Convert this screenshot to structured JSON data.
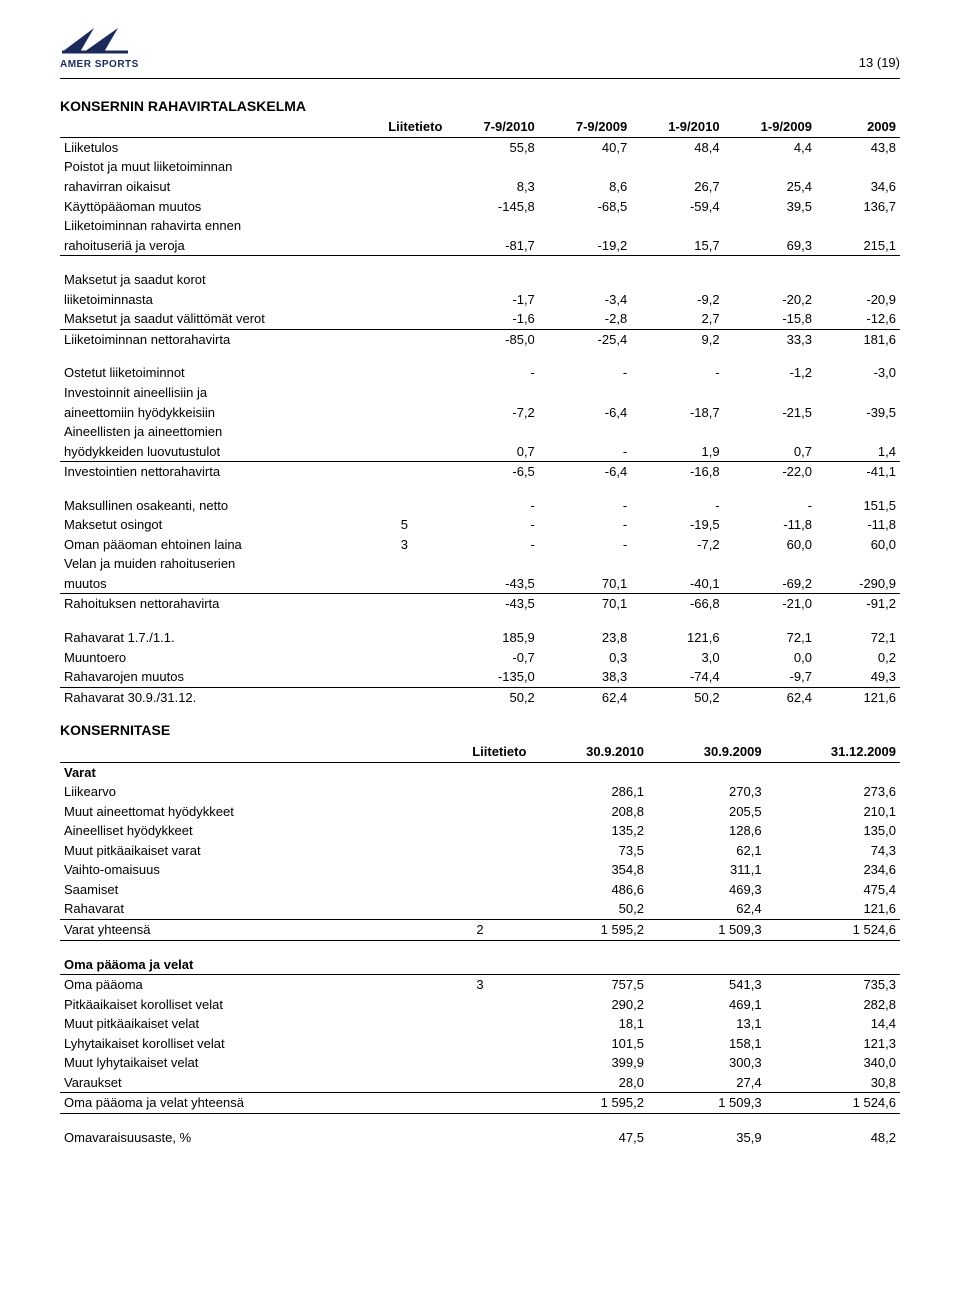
{
  "header": {
    "logo_name": "AMER SPORTS",
    "logo_color": "#1b2a5a",
    "page_number": "13 (19)"
  },
  "cashflow": {
    "title": "KONSERNIN RAHAVIRTALASKELMA",
    "col_widths_pct": [
      36,
      10,
      11,
      11,
      11,
      11,
      10
    ],
    "header_row": [
      "",
      "Liitetieto",
      "7-9/2010",
      "7-9/2009",
      "1-9/2010",
      "1-9/2009",
      "2009"
    ],
    "sections": [
      {
        "rows": [
          {
            "label": "Liiketulos",
            "note": "",
            "v": [
              "55,8",
              "40,7",
              "48,4",
              "4,4",
              "43,8"
            ]
          },
          {
            "label": "Poistot ja muut liiketoiminnan",
            "wrap": true
          },
          {
            "label": "rahavirran oikaisut",
            "note": "",
            "v": [
              "8,3",
              "8,6",
              "26,7",
              "25,4",
              "34,6"
            ]
          },
          {
            "label": "Käyttöpääoman muutos",
            "note": "",
            "v": [
              "-145,8",
              "-68,5",
              "-59,4",
              "39,5",
              "136,7"
            ]
          },
          {
            "label": "Liiketoiminnan rahavirta ennen",
            "wrap": true
          },
          {
            "label": "rahoituseriä ja veroja",
            "note": "",
            "v": [
              "-81,7",
              "-19,2",
              "15,7",
              "69,3",
              "215,1"
            ],
            "underline": true
          }
        ]
      },
      {
        "gap": true,
        "rows": [
          {
            "label": "Maksetut ja saadut korot",
            "wrap": true
          },
          {
            "label": "liiketoiminnasta",
            "note": "",
            "v": [
              "-1,7",
              "-3,4",
              "-9,2",
              "-20,2",
              "-20,9"
            ]
          },
          {
            "label": "Maksetut ja saadut välittömät verot",
            "note": "",
            "v": [
              "-1,6",
              "-2,8",
              "2,7",
              "-15,8",
              "-12,6"
            ],
            "underline": true
          },
          {
            "label": "Liiketoiminnan nettorahavirta",
            "note": "",
            "v": [
              "-85,0",
              "-25,4",
              "9,2",
              "33,3",
              "181,6"
            ]
          }
        ]
      },
      {
        "gap": true,
        "rows": [
          {
            "label": "Ostetut liiketoiminnot",
            "note": "",
            "v": [
              "-",
              "-",
              "-",
              "-1,2",
              "-3,0"
            ]
          },
          {
            "label": "Investoinnit aineellisiin ja",
            "wrap": true
          },
          {
            "label": "aineettomiin hyödykkeisiin",
            "note": "",
            "v": [
              "-7,2",
              "-6,4",
              "-18,7",
              "-21,5",
              "-39,5"
            ]
          },
          {
            "label": "Aineellisten ja aineettomien",
            "wrap": true
          },
          {
            "label": "hyödykkeiden luovutustulot",
            "note": "",
            "v": [
              "0,7",
              "-",
              "1,9",
              "0,7",
              "1,4"
            ],
            "underline": true
          },
          {
            "label": "Investointien nettorahavirta",
            "note": "",
            "v": [
              "-6,5",
              "-6,4",
              "-16,8",
              "-22,0",
              "-41,1"
            ]
          }
        ]
      },
      {
        "gap": true,
        "rows": [
          {
            "label": "Maksullinen osakeanti, netto",
            "note": "",
            "v": [
              "-",
              "-",
              "-",
              "-",
              "151,5"
            ]
          },
          {
            "label": "Maksetut osingot",
            "note": "5",
            "v": [
              "-",
              "-",
              "-19,5",
              "-11,8",
              "-11,8"
            ]
          },
          {
            "label": "Oman pääoman ehtoinen laina",
            "note": "3",
            "v": [
              "-",
              "-",
              "-7,2",
              "60,0",
              "60,0"
            ]
          },
          {
            "label": "Velan ja muiden rahoituserien",
            "wrap": true
          },
          {
            "label": "muutos",
            "note": "",
            "v": [
              "-43,5",
              "70,1",
              "-40,1",
              "-69,2",
              "-290,9"
            ],
            "underline": true
          },
          {
            "label": "Rahoituksen nettorahavirta",
            "note": "",
            "v": [
              "-43,5",
              "70,1",
              "-66,8",
              "-21,0",
              "-91,2"
            ]
          }
        ]
      },
      {
        "gap": true,
        "rows": [
          {
            "label": "Rahavarat 1.7./1.1.",
            "note": "",
            "v": [
              "185,9",
              "23,8",
              "121,6",
              "72,1",
              "72,1"
            ]
          },
          {
            "label": "Muuntoero",
            "note": "",
            "v": [
              "-0,7",
              "0,3",
              "3,0",
              "0,0",
              "0,2"
            ]
          },
          {
            "label": "Rahavarojen muutos",
            "note": "",
            "v": [
              "-135,0",
              "38,3",
              "-74,4",
              "-9,7",
              "49,3"
            ],
            "underline": true
          },
          {
            "label": "Rahavarat 30.9./31.12.",
            "note": "",
            "v": [
              "50,2",
              "62,4",
              "50,2",
              "62,4",
              "121,6"
            ]
          }
        ]
      }
    ]
  },
  "balance": {
    "title": "KONSERNITASE",
    "col_widths_pct": [
      44,
      12,
      14,
      14,
      16
    ],
    "header_row": [
      "",
      "Liitetieto",
      "30.9.2010",
      "30.9.2009",
      "31.12.2009"
    ],
    "assets_header": "Varat",
    "assets_rows": [
      {
        "label": "Liikearvo",
        "note": "",
        "v": [
          "286,1",
          "270,3",
          "273,6"
        ]
      },
      {
        "label": "Muut aineettomat hyödykkeet",
        "note": "",
        "v": [
          "208,8",
          "205,5",
          "210,1"
        ]
      },
      {
        "label": "Aineelliset hyödykkeet",
        "note": "",
        "v": [
          "135,2",
          "128,6",
          "135,0"
        ]
      },
      {
        "label": "Muut pitkäaikaiset varat",
        "note": "",
        "v": [
          "73,5",
          "62,1",
          "74,3"
        ]
      },
      {
        "label": "Vaihto-omaisuus",
        "note": "",
        "v": [
          "354,8",
          "311,1",
          "234,6"
        ]
      },
      {
        "label": "Saamiset",
        "note": "",
        "v": [
          "486,6",
          "469,3",
          "475,4"
        ]
      },
      {
        "label": "Rahavarat",
        "note": "",
        "v": [
          "50,2",
          "62,4",
          "121,6"
        ],
        "underline": true
      }
    ],
    "assets_total": {
      "label": "Varat yhteensä",
      "note": "2",
      "v": [
        "1 595,2",
        "1 509,3",
        "1 524,6"
      ],
      "underline": true
    },
    "equity_header": "Oma pääoma ja velat",
    "equity_rows": [
      {
        "label": "Oma pääoma",
        "note": "3",
        "v": [
          "757,5",
          "541,3",
          "735,3"
        ]
      },
      {
        "label": "Pitkäaikaiset korolliset velat",
        "note": "",
        "v": [
          "290,2",
          "469,1",
          "282,8"
        ]
      },
      {
        "label": "Muut pitkäaikaiset velat",
        "note": "",
        "v": [
          "18,1",
          "13,1",
          "14,4"
        ]
      },
      {
        "label": "Lyhytaikaiset korolliset velat",
        "note": "",
        "v": [
          "101,5",
          "158,1",
          "121,3"
        ]
      },
      {
        "label": "Muut lyhytaikaiset velat",
        "note": "",
        "v": [
          "399,9",
          "300,3",
          "340,0"
        ]
      },
      {
        "label": "Varaukset",
        "note": "",
        "v": [
          "28,0",
          "27,4",
          "30,8"
        ],
        "underline": true
      }
    ],
    "equity_total": {
      "label": "Oma pääoma ja velat yhteensä",
      "note": "",
      "v": [
        "1 595,2",
        "1 509,3",
        "1 524,6"
      ],
      "underline": true
    },
    "footer_row": {
      "label": "Omavaraisuusaste, %",
      "note": "",
      "v": [
        "47,5",
        "35,9",
        "48,2"
      ]
    }
  }
}
